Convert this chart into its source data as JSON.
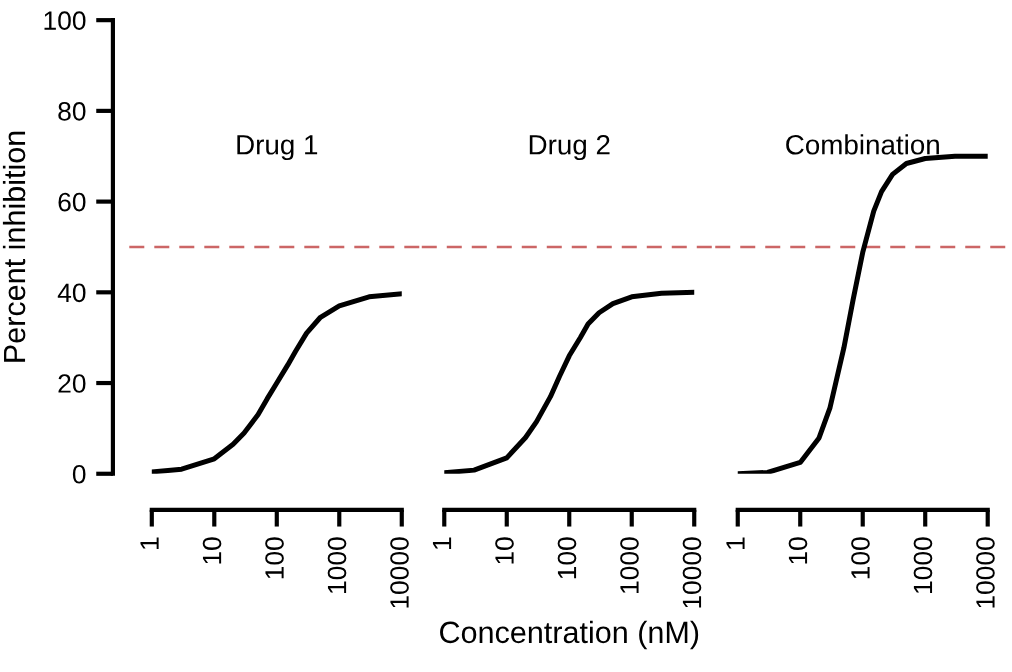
{
  "chart_data": [
    {
      "type": "line",
      "title": "Drug 1",
      "ylabel": "Percent inhibition",
      "log": "x",
      "xlim": [
        1,
        10000
      ],
      "xticks": [
        1,
        10,
        100,
        1000,
        10000
      ],
      "ylim": [
        0,
        100
      ],
      "yticks": [
        0,
        20,
        40,
        60,
        80,
        100
      ],
      "grid": false,
      "ref_lines": [
        {
          "axis": "y",
          "value": 50,
          "color": "#cc6666",
          "line_style": "dashed"
        }
      ],
      "x": [
        1,
        3,
        10,
        20,
        30,
        50,
        70,
        100,
        150,
        200,
        300,
        500,
        1000,
        3000,
        10000
      ],
      "series": [
        {
          "color": "#000000",
          "values": [
            0.4,
            1.0,
            3.3,
            6.5,
            9,
            13,
            16.5,
            20,
            24,
            27,
            31,
            34.5,
            37,
            39,
            39.7
          ]
        }
      ]
    },
    {
      "type": "line",
      "title": "Drug 2",
      "xlabel": "Concentration (nM)",
      "log": "x",
      "xlim": [
        1,
        10000
      ],
      "xticks": [
        1,
        10,
        100,
        1000,
        10000
      ],
      "ylim": [
        0,
        100
      ],
      "tick_labels": "x",
      "grid": false,
      "ref_lines": [
        {
          "axis": "y",
          "value": 50,
          "color": "#cc6666",
          "line_style": "dashed"
        }
      ],
      "x": [
        1,
        3,
        10,
        20,
        30,
        50,
        70,
        100,
        150,
        200,
        300,
        500,
        1000,
        3000,
        10000
      ],
      "series": [
        {
          "color": "#000000",
          "values": [
            0.2,
            0.8,
            3.5,
            8,
            11.5,
            17,
            21.5,
            26,
            30,
            33,
            35.5,
            37.5,
            39,
            39.8,
            40
          ]
        }
      ]
    },
    {
      "type": "line",
      "title": "Combination",
      "log": "x",
      "xlim": [
        1,
        10000
      ],
      "xticks": [
        1,
        10,
        100,
        1000,
        10000
      ],
      "ylim": [
        0,
        100
      ],
      "tick_labels": "x",
      "grid": false,
      "ref_lines": [
        {
          "axis": "y",
          "value": 50,
          "color": "#cc6666",
          "line_style": "dashed"
        }
      ],
      "x": [
        1,
        3,
        10,
        20,
        30,
        50,
        70,
        100,
        150,
        200,
        300,
        500,
        1000,
        3000,
        10000
      ],
      "series": [
        {
          "color": "#000000",
          "values": [
            0.0,
            0.3,
            2.5,
            7.9,
            14.6,
            27.8,
            38.3,
            48.8,
            57.9,
            62.2,
            66,
            68.4,
            69.5,
            70,
            70
          ]
        }
      ]
    }
  ]
}
